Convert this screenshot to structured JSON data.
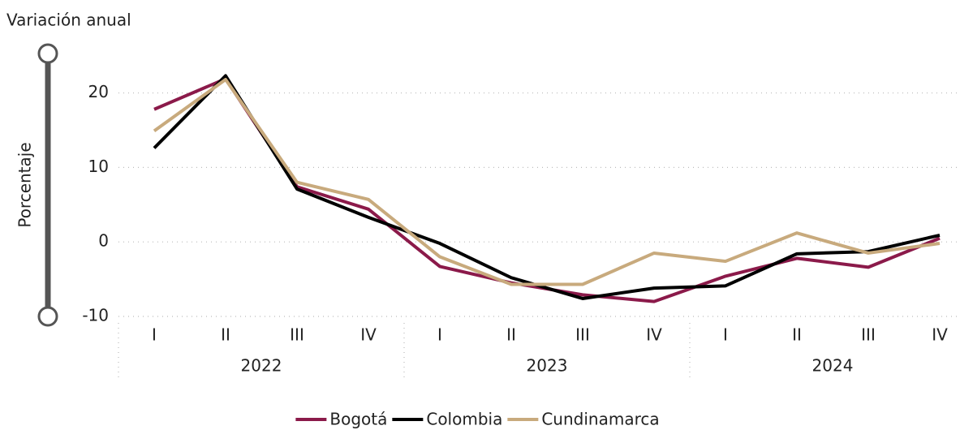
{
  "chart_data": {
    "type": "line",
    "title": "Variación anual",
    "y_label": "Porcentaje",
    "categories": [
      "I",
      "II",
      "III",
      "IV",
      "I",
      "II",
      "III",
      "IV",
      "I",
      "II",
      "III",
      "IV"
    ],
    "year_labels": [
      "2022",
      "2023",
      "2024"
    ],
    "series": [
      {
        "name": "Bogotá",
        "color": "#8b1a4a",
        "values": [
          17.8,
          21.9,
          7.4,
          4.4,
          -3.3,
          -5.5,
          -7.1,
          -8.0,
          -4.6,
          -2.2,
          -3.4,
          0.5
        ]
      },
      {
        "name": "Colombia",
        "color": "#000000",
        "values": [
          12.6,
          22.3,
          7.1,
          3.3,
          -0.2,
          -4.8,
          -7.6,
          -6.2,
          -5.9,
          -1.6,
          -1.3,
          0.9
        ]
      },
      {
        "name": "Cundinamarca",
        "color": "#c8aa7d",
        "values": [
          14.9,
          21.8,
          8.0,
          5.7,
          -2.0,
          -5.7,
          -5.7,
          -1.5,
          -2.6,
          1.2,
          -1.5,
          -0.2
        ]
      }
    ],
    "ylim": [
      -10,
      23
    ],
    "yticks": [
      -10,
      0,
      10,
      20
    ],
    "grid": true,
    "legend": "bottom"
  }
}
